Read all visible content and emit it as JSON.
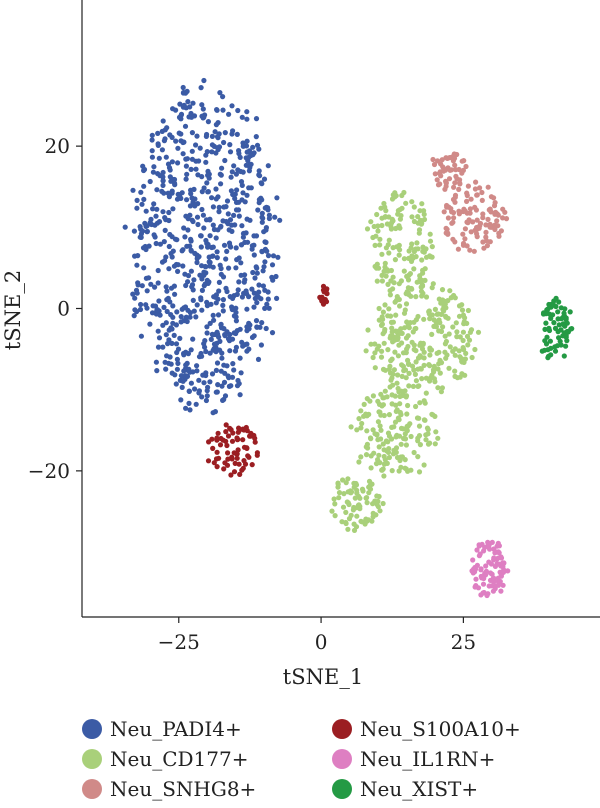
{
  "chart_data": {
    "type": "scatter",
    "title": "",
    "xlabel": "tSNE_1",
    "ylabel": "tSNE_2",
    "xlim": [
      -42,
      49
    ],
    "ylim": [
      -38,
      38
    ],
    "x_ticks": [
      -25,
      0,
      25
    ],
    "y_ticks": [
      20,
      0,
      -20
    ],
    "x_tick_labels": [
      "−25",
      "0",
      "25"
    ],
    "y_tick_labels": [
      "20",
      "0",
      "−20"
    ],
    "grid": false,
    "legend_position": "bottom",
    "series": [
      {
        "name": "Neu_PADI4+",
        "color": "#3b5ba5",
        "clusters": [
          {
            "cx": -20.5,
            "cy": 7.5,
            "rx": 13.5,
            "ry": 20.5,
            "n": 780
          }
        ]
      },
      {
        "name": "Neu_CD177+",
        "color": "#a9d07a",
        "clusters": [
          {
            "cx": 14,
            "cy": 8,
            "rx": 6,
            "ry": 6.5,
            "n": 140
          },
          {
            "cx": 18,
            "cy": -4,
            "rx": 10,
            "ry": 7,
            "n": 260
          },
          {
            "cx": 13,
            "cy": -15,
            "rx": 8,
            "ry": 6,
            "n": 160
          },
          {
            "cx": 6,
            "cy": -24,
            "rx": 5,
            "ry": 3.5,
            "n": 80
          }
        ]
      },
      {
        "name": "Neu_SNHG8+",
        "color": "#d08a88",
        "clusters": [
          {
            "cx": 22.5,
            "cy": 17,
            "rx": 3.5,
            "ry": 2.5,
            "n": 50
          },
          {
            "cx": 27,
            "cy": 11,
            "rx": 6,
            "ry": 4.5,
            "n": 110
          }
        ]
      },
      {
        "name": "Neu_S100A10+",
        "color": "#9b1e22",
        "clusters": [
          {
            "cx": -15.5,
            "cy": -17.5,
            "rx": 4.5,
            "ry": 3.5,
            "n": 70
          },
          {
            "cx": 0.5,
            "cy": 1.8,
            "rx": 1.1,
            "ry": 1.4,
            "n": 16
          }
        ]
      },
      {
        "name": "Neu_IL1RN+",
        "color": "#de7fc2",
        "clusters": [
          {
            "cx": 29.5,
            "cy": -32,
            "rx": 3.5,
            "ry": 3.8,
            "n": 90
          }
        ]
      },
      {
        "name": "Neu_XIST+",
        "color": "#249a44",
        "clusters": [
          {
            "cx": 41,
            "cy": -2.5,
            "rx": 3.2,
            "ry": 4,
            "n": 70
          }
        ]
      }
    ]
  },
  "legend": {
    "items": [
      {
        "label": "Neu_PADI4+",
        "color": "#3b5ba5"
      },
      {
        "label": "Neu_S100A10+",
        "color": "#9b1e22"
      },
      {
        "label": "Neu_CD177+",
        "color": "#a9d07a"
      },
      {
        "label": "Neu_IL1RN+",
        "color": "#de7fc2"
      },
      {
        "label": "Neu_SNHG8+",
        "color": "#d08a88"
      },
      {
        "label": "Neu_XIST+",
        "color": "#249a44"
      }
    ]
  }
}
